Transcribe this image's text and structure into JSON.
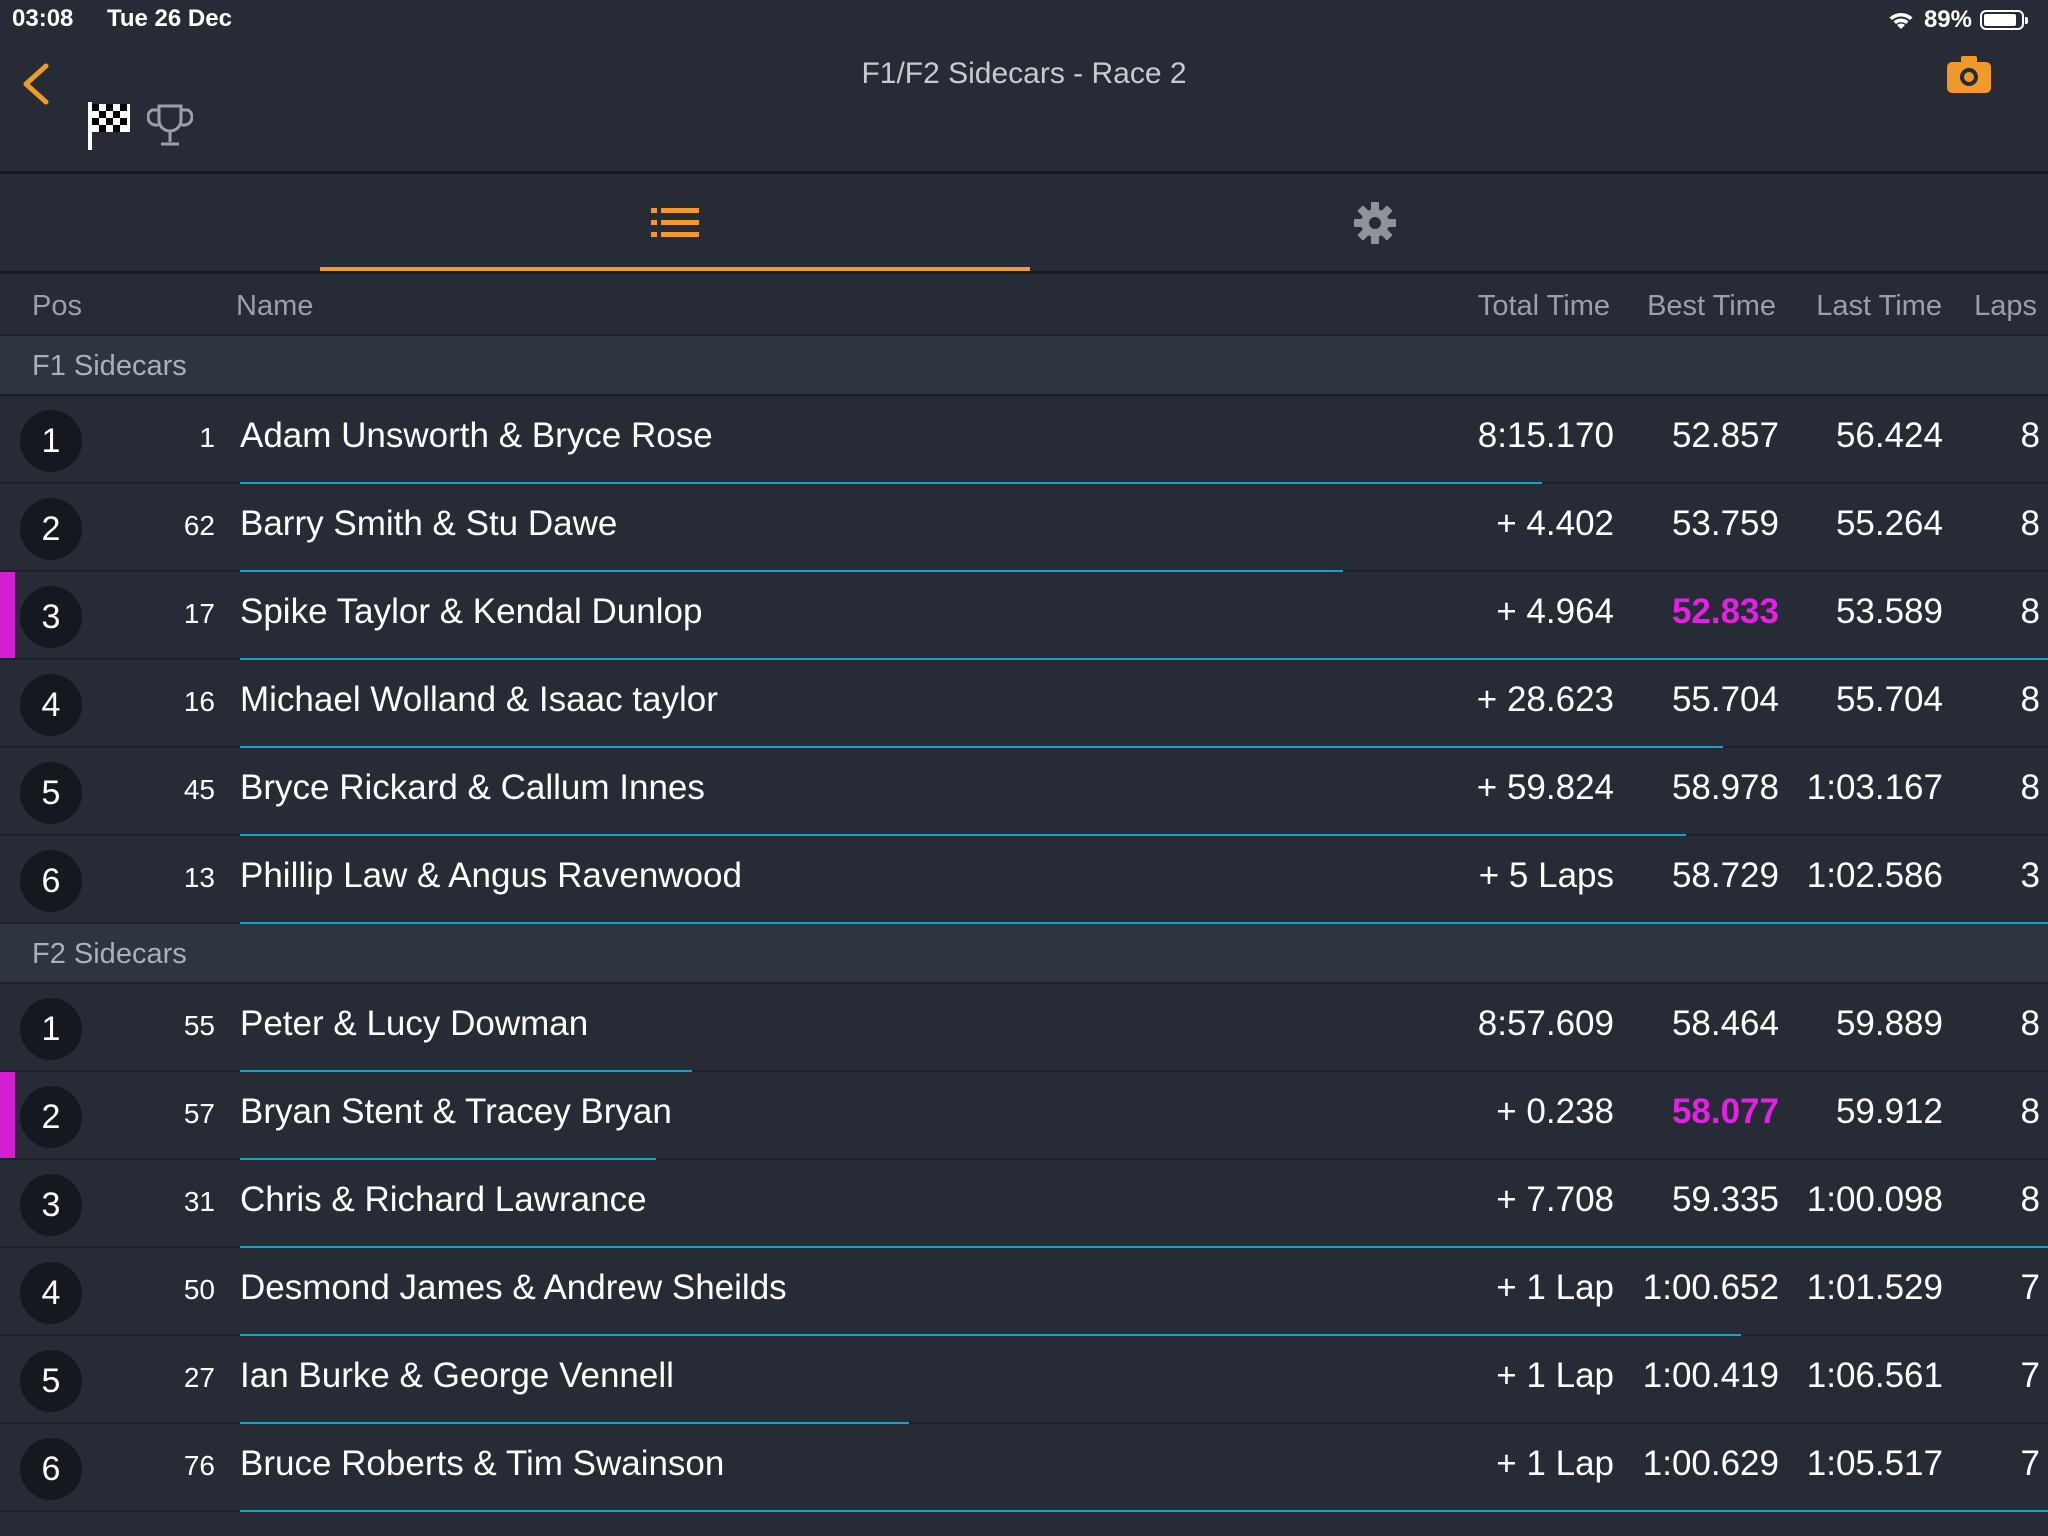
{
  "status_bar": {
    "time": "03:08",
    "date": "Tue 26 Dec",
    "battery_text": "89%",
    "battery_level": 0.89
  },
  "nav": {
    "title": "F1/F2 Sidecars - Race 2",
    "back_icon": "chevron-left-icon",
    "camera_icon": "camera-icon",
    "accent_color": "#f19a2c"
  },
  "columns": {
    "pos": "Pos",
    "name": "Name",
    "total": "Total Time",
    "best": "Best Time",
    "last": "Last Time",
    "laps": "Laps"
  },
  "sections": [
    {
      "title": "F1 Sidecars",
      "rows": [
        {
          "pos": "1",
          "number": "1",
          "name": "Adam Unsworth & Bryce Rose",
          "total": "8:15.170",
          "best": "52.857",
          "last": "56.424",
          "laps": "8",
          "fastest": false,
          "flagged": false,
          "progress": 0.72
        },
        {
          "pos": "2",
          "number": "62",
          "name": "Barry Smith & Stu Dawe",
          "total": "+ 4.402",
          "best": "53.759",
          "last": "55.264",
          "laps": "8",
          "fastest": false,
          "flagged": false,
          "progress": 0.61
        },
        {
          "pos": "3",
          "number": "17",
          "name": "Spike Taylor & Kendal Dunlop",
          "total": "+ 4.964",
          "best": "52.833",
          "last": "53.589",
          "laps": "8",
          "fastest": true,
          "flagged": true,
          "progress": 1.0
        },
        {
          "pos": "4",
          "number": "16",
          "name": "Michael Wolland & Isaac taylor",
          "total": "+ 28.623",
          "best": "55.704",
          "last": "55.704",
          "laps": "8",
          "fastest": false,
          "flagged": false,
          "progress": 0.82
        },
        {
          "pos": "5",
          "number": "45",
          "name": "Bryce Rickard & Callum Innes",
          "total": "+ 59.824",
          "best": "58.978",
          "last": "1:03.167",
          "laps": "8",
          "fastest": false,
          "flagged": false,
          "progress": 0.8
        },
        {
          "pos": "6",
          "number": "13",
          "name": "Phillip Law & Angus Ravenwood",
          "total": "+ 5 Laps",
          "best": "58.729",
          "last": "1:02.586",
          "laps": "3",
          "fastest": false,
          "flagged": false,
          "progress": 1.0
        }
      ]
    },
    {
      "title": "F2 Sidecars",
      "rows": [
        {
          "pos": "1",
          "number": "55",
          "name": "Peter & Lucy Dowman",
          "total": "8:57.609",
          "best": "58.464",
          "last": "59.889",
          "laps": "8",
          "fastest": false,
          "flagged": false,
          "progress": 0.25
        },
        {
          "pos": "2",
          "number": "57",
          "name": "Bryan Stent & Tracey Bryan",
          "total": "+ 0.238",
          "best": "58.077",
          "last": "59.912",
          "laps": "8",
          "fastest": true,
          "flagged": true,
          "progress": 0.23
        },
        {
          "pos": "3",
          "number": "31",
          "name": "Chris & Richard Lawrance",
          "total": "+ 7.708",
          "best": "59.335",
          "last": "1:00.098",
          "laps": "8",
          "fastest": false,
          "flagged": false,
          "progress": 1.0
        },
        {
          "pos": "4",
          "number": "50",
          "name": "Desmond James & Andrew Sheilds",
          "total": "+ 1 Lap",
          "best": "1:00.652",
          "last": "1:01.529",
          "laps": "7",
          "fastest": false,
          "flagged": false,
          "progress": 0.83
        },
        {
          "pos": "5",
          "number": "27",
          "name": "Ian Burke & George Vennell",
          "total": "+ 1 Lap",
          "best": "1:00.419",
          "last": "1:06.561",
          "laps": "7",
          "fastest": false,
          "flagged": false,
          "progress": 0.37
        },
        {
          "pos": "6",
          "number": "76",
          "name": "Bruce Roberts & Tim Swainson",
          "total": "+ 1 Lap",
          "best": "1:00.629",
          "last": "1:05.517",
          "laps": "7",
          "fastest": false,
          "flagged": false,
          "progress": 1.0
        }
      ]
    }
  ]
}
